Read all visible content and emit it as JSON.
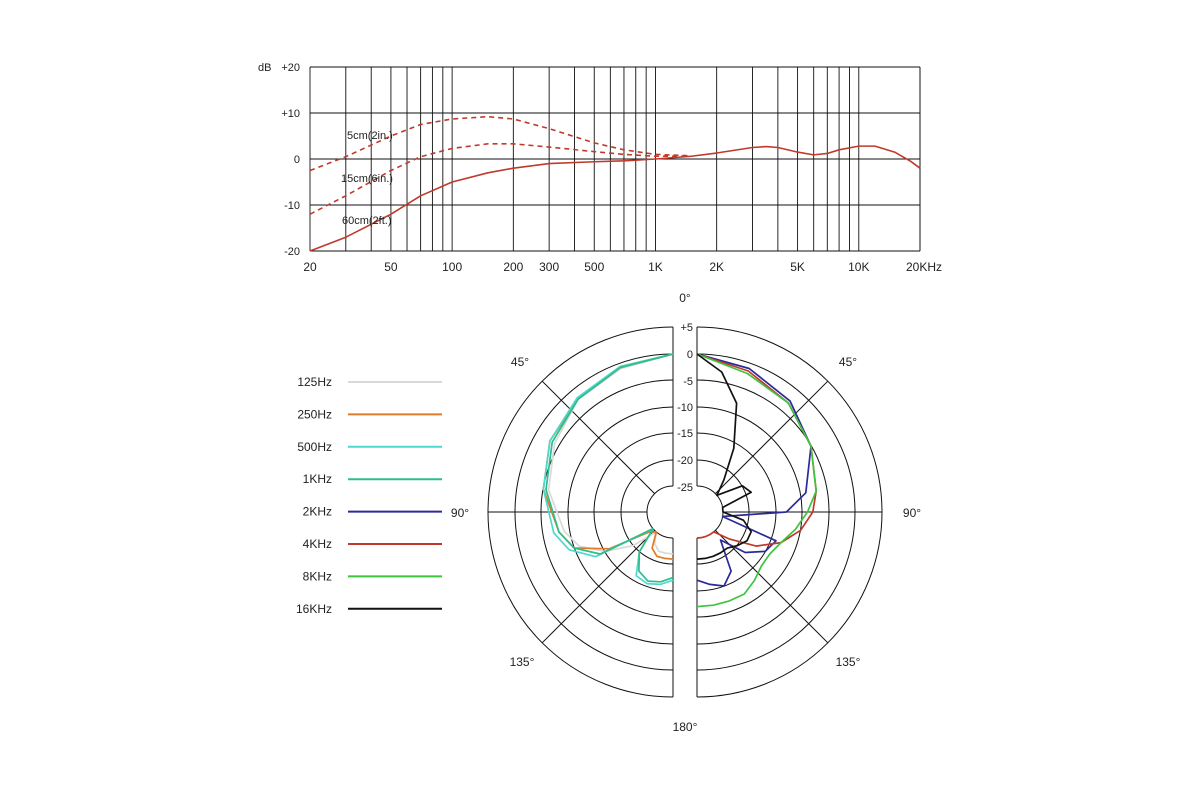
{
  "chart_data": [
    {
      "type": "line",
      "ylabel": "dB",
      "x_scale": "log",
      "xlim": [
        20,
        20000
      ],
      "ylim": [
        -20,
        20
      ],
      "grid": true,
      "y_ticks": [
        {
          "value": 20,
          "label": "+20"
        },
        {
          "value": 10,
          "label": "+10"
        },
        {
          "value": 0,
          "label": "0"
        },
        {
          "value": -10,
          "label": "-10"
        },
        {
          "value": -20,
          "label": "-20"
        }
      ],
      "x_ticks": [
        {
          "value": 20,
          "label": "20"
        },
        {
          "value": 50,
          "label": "50"
        },
        {
          "value": 100,
          "label": "100"
        },
        {
          "value": 200,
          "label": "200"
        },
        {
          "value": 300,
          "label": "300"
        },
        {
          "value": 500,
          "label": "500"
        },
        {
          "value": 1000,
          "label": "1K"
        },
        {
          "value": 2000,
          "label": "2K"
        },
        {
          "value": 5000,
          "label": "5K"
        },
        {
          "value": 10000,
          "label": "10K"
        },
        {
          "value": 20000,
          "label": "20KHz"
        }
      ],
      "series": [
        {
          "name": "5cm(2in.)",
          "color": "#c0392b",
          "dashed": true,
          "points": [
            [
              20,
              -2.5
            ],
            [
              30,
              0.5
            ],
            [
              50,
              5
            ],
            [
              70,
              7.5
            ],
            [
              100,
              8.7
            ],
            [
              150,
              9.2
            ],
            [
              200,
              8.7
            ],
            [
              300,
              6.6
            ],
            [
              500,
              3.5
            ],
            [
              700,
              2
            ],
            [
              1000,
              1
            ],
            [
              1500,
              0.7
            ]
          ]
        },
        {
          "name": "15cm(6in.)",
          "color": "#c0392b",
          "dashed": true,
          "points": [
            [
              20,
              -12
            ],
            [
              30,
              -8
            ],
            [
              50,
              -2.5
            ],
            [
              70,
              0.5
            ],
            [
              100,
              2.3
            ],
            [
              150,
              3.3
            ],
            [
              200,
              3.3
            ],
            [
              300,
              2.6
            ],
            [
              500,
              1.6
            ],
            [
              700,
              1
            ],
            [
              1000,
              0.6
            ],
            [
              1500,
              0.6
            ]
          ]
        },
        {
          "name": "60cm(2ft.)",
          "color": "#c0392b",
          "dashed": false,
          "points": [
            [
              20,
              -20
            ],
            [
              30,
              -17
            ],
            [
              50,
              -12
            ],
            [
              70,
              -8
            ],
            [
              100,
              -5
            ],
            [
              150,
              -3
            ],
            [
              200,
              -2
            ],
            [
              300,
              -1
            ],
            [
              500,
              -0.6
            ],
            [
              700,
              -0.4
            ],
            [
              1000,
              0
            ],
            [
              1500,
              0.6
            ],
            [
              2000,
              1.3
            ],
            [
              3000,
              2.5
            ],
            [
              3500,
              2.7
            ],
            [
              4000,
              2.5
            ],
            [
              5000,
              1.5
            ],
            [
              6000,
              0.9
            ],
            [
              7000,
              1.2
            ],
            [
              8000,
              2
            ],
            [
              10000,
              2.8
            ],
            [
              12000,
              2.8
            ],
            [
              15000,
              1.5
            ],
            [
              18000,
              -0.5
            ],
            [
              20000,
              -2
            ]
          ]
        }
      ]
    },
    {
      "type": "polar",
      "r_ticks": [
        "+5",
        "0",
        "-5",
        "-10",
        "-15",
        "-20",
        "-25"
      ],
      "angle_labels": [
        "0°",
        "45°",
        "90°",
        "135°",
        "180°",
        "45°",
        "90°",
        "135°"
      ],
      "legend": [
        {
          "name": "125Hz",
          "color": "#d9d9d9"
        },
        {
          "name": "250Hz",
          "color": "#e07b28"
        },
        {
          "name": "500Hz",
          "color": "#4dd9d0"
        },
        {
          "name": "1KHz",
          "color": "#2ebd8c"
        },
        {
          "name": "2KHz",
          "color": "#2a2a9a"
        },
        {
          "name": "4KHz",
          "color": "#c0392b"
        },
        {
          "name": "8KHz",
          "color": "#3fc43f"
        },
        {
          "name": "16KHz",
          "color": "#111111"
        }
      ],
      "series": [
        {
          "name": "125Hz",
          "color": "#d9d9d9",
          "points": [
            [
              0,
              0
            ],
            [
              20,
              -1
            ],
            [
              40,
              -2
            ],
            [
              60,
              -4
            ],
            [
              80,
              -6
            ],
            [
              100,
              -9
            ],
            [
              110,
              -11
            ],
            [
              120,
              -15
            ],
            [
              130,
              -20
            ],
            [
              140,
              -25
            ],
            [
              150,
              -23
            ],
            [
              160,
              -22
            ],
            [
              170,
              -22
            ],
            [
              180,
              -22
            ]
          ]
        },
        {
          "name": "250Hz",
          "color": "#e07b28",
          "points": [
            [
              0,
              0
            ],
            [
              20,
              -0.8
            ],
            [
              40,
              -2
            ],
            [
              60,
              -3
            ],
            [
              80,
              -5
            ],
            [
              100,
              -8
            ],
            [
              110,
              -10
            ],
            [
              120,
              -16
            ],
            [
              130,
              -24
            ],
            [
              140,
              -26
            ],
            [
              150,
              -22
            ],
            [
              160,
              -21
            ],
            [
              170,
              -21
            ],
            [
              180,
              -21
            ]
          ]
        },
        {
          "name": "500Hz",
          "color": "#4dd9d0",
          "points": [
            [
              0,
              0
            ],
            [
              20,
              -0.6
            ],
            [
              40,
              -1.7
            ],
            [
              60,
              -3
            ],
            [
              80,
              -5
            ],
            [
              100,
              -7
            ],
            [
              110,
              -9
            ],
            [
              120,
              -13
            ],
            [
              130,
              -25
            ],
            [
              140,
              -20
            ],
            [
              150,
              -16
            ],
            [
              160,
              -15.5
            ],
            [
              170,
              -16
            ],
            [
              180,
              -17
            ]
          ]
        },
        {
          "name": "1KHz",
          "color": "#2ebd8c",
          "points": [
            [
              0,
              0
            ],
            [
              20,
              -0.8
            ],
            [
              40,
              -2
            ],
            [
              60,
              -3.5
            ],
            [
              80,
              -5.5
            ],
            [
              100,
              -8
            ],
            [
              110,
              -10
            ],
            [
              120,
              -14
            ],
            [
              130,
              -25
            ],
            [
              140,
              -20
            ],
            [
              150,
              -17
            ],
            [
              160,
              -16
            ],
            [
              170,
              -16.5
            ],
            [
              180,
              -17.5
            ]
          ]
        },
        {
          "name": "2KHz",
          "color": "#2a2a9a",
          "points": [
            [
              0,
              0
            ],
            [
              20,
              -1
            ],
            [
              40,
              -2.5
            ],
            [
              60,
              -5
            ],
            [
              80,
              -9
            ],
            [
              90,
              -13
            ],
            [
              100,
              -25
            ],
            [
              110,
              -14
            ],
            [
              120,
              -15
            ],
            [
              130,
              -18
            ],
            [
              140,
              -23
            ],
            [
              150,
              -17
            ],
            [
              160,
              -15
            ],
            [
              170,
              -16
            ],
            [
              180,
              -17
            ]
          ]
        },
        {
          "name": "4KHz",
          "color": "#c0392b",
          "points": [
            [
              0,
              0
            ],
            [
              20,
              -1.5
            ],
            [
              40,
              -3
            ],
            [
              60,
              -5
            ],
            [
              80,
              -7
            ],
            [
              90,
              -8
            ],
            [
              100,
              -10
            ],
            [
              110,
              -13
            ],
            [
              120,
              -17
            ],
            [
              130,
              -22
            ],
            [
              140,
              -25
            ],
            [
              150,
              -26
            ],
            [
              160,
              -26
            ],
            [
              170,
              -26
            ],
            [
              180,
              -26
            ]
          ]
        },
        {
          "name": "8KHz",
          "color": "#3fc43f",
          "points": [
            [
              0,
              0
            ],
            [
              20,
              -2
            ],
            [
              40,
              -3
            ],
            [
              60,
              -5
            ],
            [
              80,
              -7
            ],
            [
              90,
              -9
            ],
            [
              100,
              -11
            ],
            [
              110,
              -13
            ],
            [
              120,
              -14
            ],
            [
              130,
              -14
            ],
            [
              140,
              -13
            ],
            [
              150,
              -12
            ],
            [
              160,
              -12
            ],
            [
              170,
              -12
            ],
            [
              180,
              -12
            ]
          ]
        },
        {
          "name": "16KHz",
          "color": "#111111",
          "points": [
            [
              0,
              0
            ],
            [
              10,
              -3
            ],
            [
              20,
              -8
            ],
            [
              30,
              -16
            ],
            [
              40,
              -22
            ],
            [
              50,
              -25
            ],
            [
              60,
              -20
            ],
            [
              70,
              -19
            ],
            [
              80,
              -25
            ],
            [
              90,
              -25
            ],
            [
              100,
              -21
            ],
            [
              110,
              -19
            ],
            [
              120,
              -19
            ],
            [
              130,
              -20
            ],
            [
              140,
              -21
            ],
            [
              150,
              -21
            ],
            [
              160,
              -21
            ],
            [
              170,
              -21
            ],
            [
              180,
              -21
            ]
          ]
        }
      ]
    }
  ]
}
